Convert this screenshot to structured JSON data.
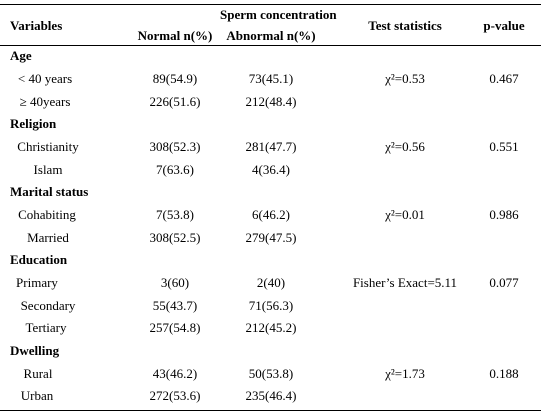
{
  "header": {
    "variables": "Variables",
    "sperm_concentration": "Sperm concentration",
    "normal": "Normal n(%)",
    "abnormal": "Abnormal n(%)",
    "test_statistics": "Test statistics",
    "p_value": "p-value"
  },
  "groups": [
    {
      "name": "Age",
      "rows": [
        {
          "label": "< 40 years",
          "normal": "89(54.9)",
          "abnormal": "73(45.1)",
          "test": "χ²=0.53",
          "p": "0.467"
        },
        {
          "label": "≥ 40years",
          "normal": "226(51.6)",
          "abnormal": "212(48.4)",
          "test": "",
          "p": ""
        }
      ]
    },
    {
      "name": "Religion",
      "rows": [
        {
          "label": "Christianity",
          "normal": "308(52.3)",
          "abnormal": "281(47.7)",
          "test": "χ²=0.56",
          "p": "0.551"
        },
        {
          "label": "Islam",
          "normal": "7(63.6)",
          "abnormal": "4(36.4)",
          "test": "",
          "p": ""
        }
      ]
    },
    {
      "name": "Marital status",
      "rows": [
        {
          "label": "Cohabiting",
          "normal": "7(53.8)",
          "abnormal": "6(46.2)",
          "test": "χ²=0.01",
          "p": "0.986"
        },
        {
          "label": "Married",
          "normal": "308(52.5)",
          "abnormal": "279(47.5)",
          "test": "",
          "p": ""
        }
      ]
    },
    {
      "name": "Education",
      "rows": [
        {
          "label": "Primary",
          "normal": "3(60)",
          "abnormal": "2(40)",
          "test": "Fisher’s Exact=5.11",
          "p": "0.077"
        },
        {
          "label": "Secondary",
          "normal": "55(43.7)",
          "abnormal": "71(56.3)",
          "test": "",
          "p": ""
        },
        {
          "label": "Tertiary",
          "normal": "257(54.8)",
          "abnormal": "212(45.2)",
          "test": "",
          "p": ""
        }
      ]
    },
    {
      "name": "Dwelling",
      "rows": [
        {
          "label": "Rural",
          "normal": "43(46.2)",
          "abnormal": "50(53.8)",
          "test": "χ²=1.73",
          "p": "0.188"
        },
        {
          "label": "Urban",
          "normal": "272(53.6)",
          "abnormal": "235(46.4)",
          "test": "",
          "p": ""
        }
      ]
    }
  ]
}
